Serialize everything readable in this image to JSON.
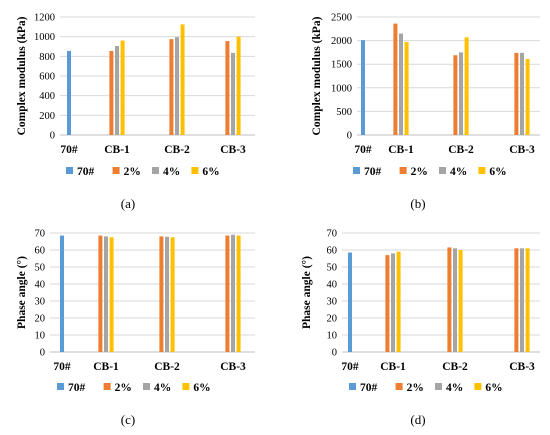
{
  "figure": {
    "panels": [
      "(a)",
      "(b)",
      "(c)",
      "(d)"
    ]
  },
  "chart_data": [
    {
      "type": "bar",
      "caption": "(a)",
      "categories": [
        "70#",
        "CB-1",
        "CB-2",
        "CB-3"
      ],
      "series": [
        {
          "name": "70#",
          "color": "#5B9BD5",
          "values": [
            855,
            null,
            null,
            null
          ]
        },
        {
          "name": "2%",
          "color": "#ED7D31",
          "values": [
            null,
            855,
            975,
            955
          ]
        },
        {
          "name": "4%",
          "color": "#A5A5A5",
          "values": [
            null,
            905,
            995,
            835
          ]
        },
        {
          "name": "6%",
          "color": "#FFC000",
          "values": [
            null,
            960,
            1125,
            1000
          ]
        }
      ],
      "ylabel": "Complex modulus (kPa)",
      "ylim": [
        0,
        1200
      ],
      "yticks": [
        "0",
        "200",
        "400",
        "600",
        "800",
        "1000",
        "1200"
      ],
      "grid": true,
      "legend": "bottom"
    },
    {
      "type": "bar",
      "caption": "(b)",
      "categories": [
        "70#",
        "CB-1",
        "CB-2",
        "CB-3"
      ],
      "series": [
        {
          "name": "70#",
          "color": "#5B9BD5",
          "values": [
            2010,
            null,
            null,
            null
          ]
        },
        {
          "name": "2%",
          "color": "#ED7D31",
          "values": [
            null,
            2360,
            1690,
            1740
          ]
        },
        {
          "name": "4%",
          "color": "#A5A5A5",
          "values": [
            null,
            2150,
            1750,
            1740
          ]
        },
        {
          "name": "6%",
          "color": "#FFC000",
          "values": [
            null,
            1970,
            2070,
            1610
          ]
        }
      ],
      "ylabel": "Complex modulus (kPa)",
      "ylim": [
        0,
        2500
      ],
      "yticks": [
        "0",
        "500",
        "1000",
        "1500",
        "2000",
        "2500"
      ],
      "grid": true,
      "legend": "bottom"
    },
    {
      "type": "bar",
      "caption": "(c)",
      "categories": [
        "70#",
        "CB-1",
        "CB-2",
        "CB-3"
      ],
      "series": [
        {
          "name": "70#",
          "color": "#5B9BD5",
          "values": [
            68.5,
            null,
            null,
            null
          ]
        },
        {
          "name": "2%",
          "color": "#ED7D31",
          "values": [
            null,
            68.5,
            68.0,
            68.5
          ]
        },
        {
          "name": "4%",
          "color": "#A5A5A5",
          "values": [
            null,
            68.0,
            67.8,
            69.0
          ]
        },
        {
          "name": "6%",
          "color": "#FFC000",
          "values": [
            null,
            67.5,
            67.5,
            68.5
          ]
        }
      ],
      "ylabel": "Phase angle (°)",
      "ylim": [
        0,
        70
      ],
      "yticks": [
        "0",
        "10",
        "20",
        "30",
        "40",
        "50",
        "60",
        "70"
      ],
      "grid": true,
      "legend": "bottom"
    },
    {
      "type": "bar",
      "caption": "(d)",
      "categories": [
        "70#",
        "CB-1",
        "CB-2",
        "CB-3"
      ],
      "series": [
        {
          "name": "70#",
          "color": "#5B9BD5",
          "values": [
            58.5,
            null,
            null,
            null
          ]
        },
        {
          "name": "2%",
          "color": "#ED7D31",
          "values": [
            null,
            57.0,
            61.5,
            61.0
          ]
        },
        {
          "name": "4%",
          "color": "#A5A5A5",
          "values": [
            null,
            58.0,
            61.0,
            61.0
          ]
        },
        {
          "name": "6%",
          "color": "#FFC000",
          "values": [
            null,
            59.0,
            60.0,
            61.0
          ]
        }
      ],
      "ylabel": "Phase angle (°)",
      "ylim": [
        0,
        70
      ],
      "yticks": [
        "0",
        "10",
        "20",
        "30",
        "40",
        "50",
        "60",
        "70"
      ],
      "grid": true,
      "legend": "bottom"
    }
  ]
}
